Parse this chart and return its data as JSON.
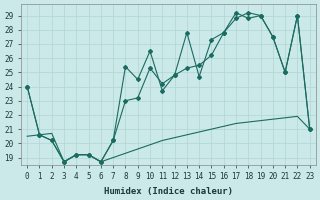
{
  "title": "",
  "xlabel": "Humidex (Indice chaleur)",
  "ylabel": "",
  "bg_color": "#cce9e9",
  "grid_color": "#b0d4d4",
  "line_color": "#1a6b60",
  "xlim": [
    -0.5,
    23.5
  ],
  "ylim": [
    18.5,
    29.8
  ],
  "xticks": [
    0,
    1,
    2,
    3,
    4,
    5,
    6,
    7,
    8,
    9,
    10,
    11,
    12,
    13,
    14,
    15,
    16,
    17,
    18,
    19,
    20,
    21,
    22,
    23
  ],
  "yticks": [
    19,
    20,
    21,
    22,
    23,
    24,
    25,
    26,
    27,
    28,
    29
  ],
  "line1_x": [
    0,
    1,
    2,
    3,
    4,
    5,
    6,
    7,
    8,
    9,
    10,
    11,
    12,
    13,
    14,
    15,
    16,
    17,
    18,
    19,
    20,
    21,
    22,
    23
  ],
  "line1_y": [
    24.0,
    20.6,
    20.2,
    18.7,
    19.2,
    19.2,
    18.7,
    20.2,
    25.4,
    24.5,
    26.5,
    23.7,
    24.8,
    27.8,
    24.7,
    27.3,
    27.8,
    29.2,
    28.8,
    29.0,
    27.5,
    25.0,
    29.0,
    21.0
  ],
  "line2_x": [
    0,
    1,
    2,
    3,
    4,
    5,
    6,
    7,
    8,
    9,
    10,
    11,
    12,
    13,
    14,
    15,
    16,
    17,
    18,
    19,
    20,
    21,
    22,
    23
  ],
  "line2_y": [
    24.0,
    20.6,
    20.2,
    18.7,
    19.2,
    19.2,
    18.7,
    20.2,
    23.0,
    23.2,
    25.3,
    24.2,
    24.8,
    25.3,
    25.5,
    26.2,
    27.8,
    28.8,
    29.2,
    29.0,
    27.5,
    25.0,
    29.0,
    21.0
  ],
  "line3_x": [
    0,
    1,
    2,
    3,
    4,
    5,
    6,
    7,
    8,
    9,
    10,
    11,
    12,
    13,
    14,
    15,
    16,
    17,
    18,
    19,
    20,
    21,
    22,
    23
  ],
  "line3_y": [
    20.5,
    20.6,
    20.7,
    18.7,
    19.2,
    19.2,
    18.7,
    19.0,
    19.3,
    19.6,
    19.9,
    20.2,
    20.4,
    20.6,
    20.8,
    21.0,
    21.2,
    21.4,
    21.5,
    21.6,
    21.7,
    21.8,
    21.9,
    21.0
  ]
}
